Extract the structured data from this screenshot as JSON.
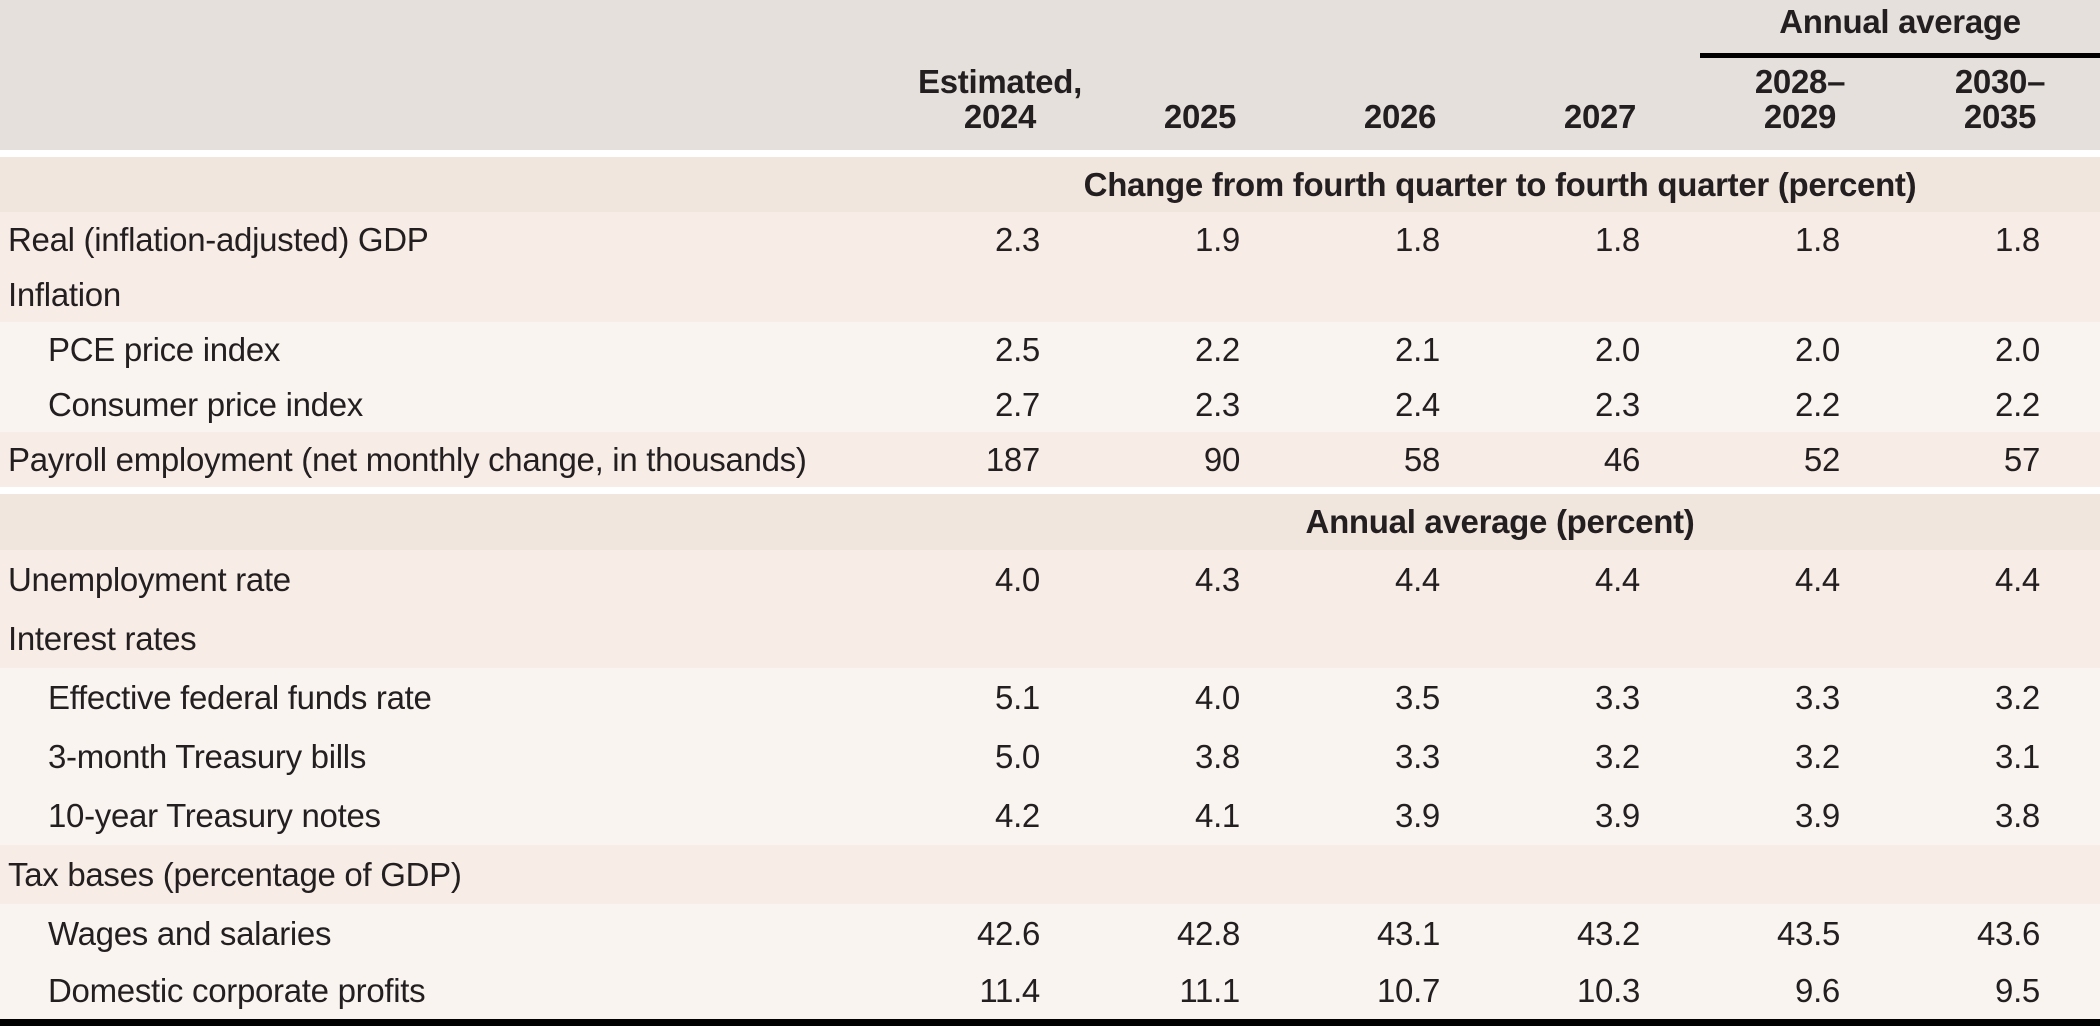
{
  "colors": {
    "header-bg": "#e5e0dc",
    "section-bg": "#f1e6de",
    "row-strong-bg": "#f7ece6",
    "row-soft-bg": "#faf4f0",
    "text": "#231f20",
    "rule": "#000000"
  },
  "header": {
    "spanner": "Annual average",
    "columns": [
      "Estimated,\n2024",
      "2025",
      "2026",
      "2027",
      "2028–\n2029",
      "2030–\n2035"
    ]
  },
  "sections": [
    {
      "title": "Change from fourth quarter to fourth quarter (percent)",
      "rows": [
        {
          "label": "Real (inflation-adjusted) GDP",
          "indent": false,
          "values": [
            "2.3",
            "1.9",
            "1.8",
            "1.8",
            "1.8",
            "1.8"
          ]
        },
        {
          "label": "Inflation",
          "indent": false,
          "values": []
        },
        {
          "label": "PCE price index",
          "indent": true,
          "values": [
            "2.5",
            "2.2",
            "2.1",
            "2.0",
            "2.0",
            "2.0"
          ]
        },
        {
          "label": "Consumer price index",
          "indent": true,
          "values": [
            "2.7",
            "2.3",
            "2.4",
            "2.3",
            "2.2",
            "2.2"
          ]
        },
        {
          "label": "Payroll employment (net monthly change, in thousands)",
          "indent": false,
          "values": [
            "187",
            "90",
            "58",
            "46",
            "52",
            "57"
          ]
        }
      ]
    },
    {
      "title": "Annual average (percent)",
      "rows": [
        {
          "label": "Unemployment rate",
          "indent": false,
          "values": [
            "4.0",
            "4.3",
            "4.4",
            "4.4",
            "4.4",
            "4.4"
          ]
        },
        {
          "label": "Interest rates",
          "indent": false,
          "values": []
        },
        {
          "label": "Effective federal funds rate",
          "indent": true,
          "values": [
            "5.1",
            "4.0",
            "3.5",
            "3.3",
            "3.3",
            "3.2"
          ]
        },
        {
          "label": "3-month Treasury bills",
          "indent": true,
          "values": [
            "5.0",
            "3.8",
            "3.3",
            "3.2",
            "3.2",
            "3.1"
          ]
        },
        {
          "label": "10-year Treasury notes",
          "indent": true,
          "values": [
            "4.2",
            "4.1",
            "3.9",
            "3.9",
            "3.9",
            "3.8"
          ]
        },
        {
          "label": "Tax bases (percentage of GDP)",
          "indent": false,
          "values": []
        },
        {
          "label": "Wages and salaries",
          "indent": true,
          "values": [
            "42.6",
            "42.8",
            "43.1",
            "43.2",
            "43.5",
            "43.6"
          ]
        },
        {
          "label": "Domestic corporate profits",
          "indent": true,
          "values": [
            "11.4",
            "11.1",
            "10.7",
            "10.3",
            "9.6",
            "9.5"
          ]
        }
      ]
    }
  ]
}
